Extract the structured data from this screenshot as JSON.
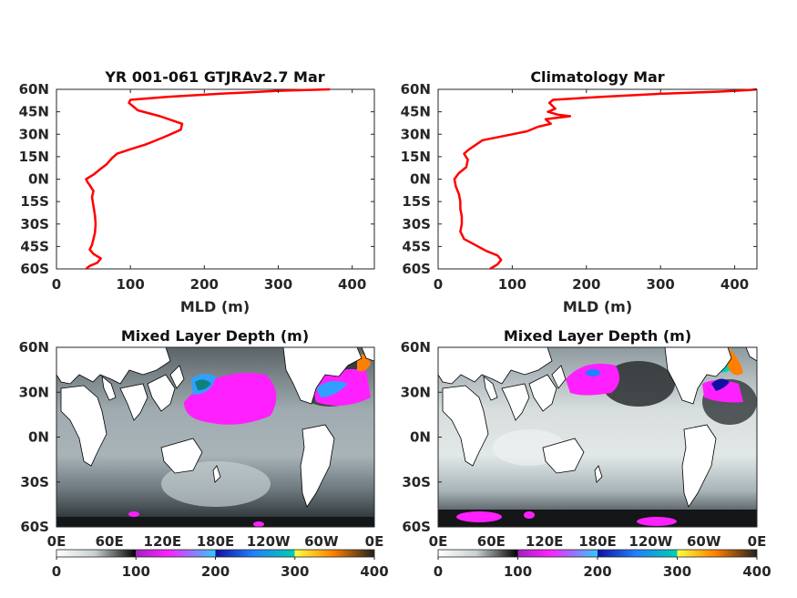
{
  "chart_data": [
    {
      "type": "line",
      "title": "YR 001-061 GTJRAv2.7 Mar",
      "xlabel": "MLD (m)",
      "ylabel": "",
      "xlim": [
        0,
        430
      ],
      "ylim": [
        -60,
        60
      ],
      "xticks": [
        "0",
        "100",
        "200",
        "300",
        "400"
      ],
      "yticks": [
        "60N",
        "45N",
        "30N",
        "15N",
        "0N",
        "15S",
        "30S",
        "45S",
        "60S"
      ],
      "color": "#ff0000",
      "series": [
        {
          "x": [
            370,
            300,
            220,
            150,
            100,
            98,
            110,
            140,
            170,
            168,
            150,
            130,
            120,
            100,
            82,
            75,
            68,
            60,
            50,
            40,
            42,
            45,
            50,
            48,
            50,
            52,
            53,
            52,
            50,
            48,
            45,
            50,
            60,
            55,
            45,
            40
          ],
          "y": [
            60,
            59,
            57,
            55,
            53,
            51,
            46,
            42,
            37,
            33,
            29,
            25,
            23,
            20,
            17,
            14,
            10,
            7,
            3,
            0,
            -2,
            -4,
            -8,
            -12,
            -18,
            -24,
            -30,
            -36,
            -40,
            -44,
            -47,
            -50,
            -53,
            -56,
            -58,
            -60
          ]
        }
      ]
    },
    {
      "type": "line",
      "title": "Climatology Mar",
      "xlabel": "MLD (m)",
      "ylabel": "",
      "xlim": [
        0,
        430
      ],
      "ylim": [
        -60,
        60
      ],
      "xticks": [
        "0",
        "100",
        "200",
        "300",
        "400"
      ],
      "yticks": [
        "60N",
        "45N",
        "30N",
        "15N",
        "0N",
        "15S",
        "30S",
        "45S",
        "60S"
      ],
      "color": "#ff0000",
      "series": [
        {
          "x": [
            430,
            420,
            400,
            380,
            300,
            220,
            155,
            150,
            158,
            148,
            162,
            178,
            145,
            152,
            135,
            120,
            100,
            60,
            42,
            35,
            40,
            38,
            28,
            22,
            24,
            28,
            30,
            30,
            32,
            32,
            30,
            35,
            50,
            65,
            80,
            85,
            80,
            70
          ],
          "y": [
            60,
            59.5,
            59,
            58.5,
            57,
            55,
            53,
            51,
            47,
            45,
            43,
            42,
            40,
            37,
            35,
            32,
            30,
            26,
            20,
            17,
            13,
            8,
            4,
            0,
            -5,
            -10,
            -15,
            -20,
            -25,
            -30,
            -35,
            -40,
            -44,
            -48,
            -51,
            -54,
            -57,
            -60
          ]
        }
      ]
    }
  ],
  "maps": [
    {
      "title": "Mixed Layer Depth (m)",
      "yticks": [
        "60N",
        "30N",
        "0N",
        "30S",
        "60S"
      ],
      "xticks": [
        "0E",
        "60E",
        "120E",
        "180E",
        "120W",
        "60W",
        "0E"
      ],
      "colorbar_ticks": [
        "0",
        "100",
        "200",
        "300",
        "400"
      ]
    },
    {
      "title": "Mixed Layer Depth (m)",
      "yticks": [
        "60N",
        "30N",
        "0N",
        "30S",
        "60S"
      ],
      "xticks": [
        "0E",
        "60E",
        "120E",
        "180E",
        "120W",
        "60W",
        "0E"
      ],
      "colorbar_ticks": [
        "0",
        "100",
        "200",
        "300",
        "400"
      ]
    }
  ]
}
